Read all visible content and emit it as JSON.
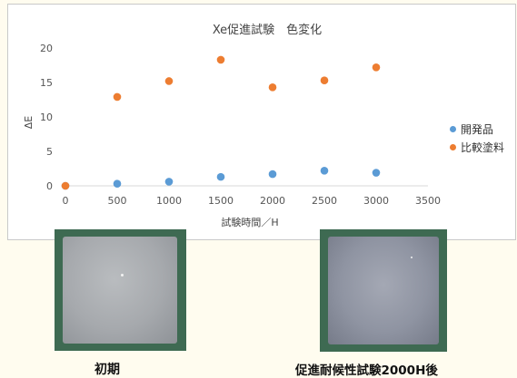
{
  "chart_data": {
    "type": "scatter",
    "title": "Xe促進試験　色変化",
    "xlabel": "試験時間／H",
    "ylabel": "ΔE",
    "xlim": [
      0,
      3500
    ],
    "ylim": [
      0,
      20
    ],
    "xticks": [
      0,
      500,
      1000,
      1500,
      2000,
      2500,
      3000,
      3500
    ],
    "yticks": [
      0,
      5,
      10,
      15,
      20
    ],
    "grid": false,
    "legend_position": "right",
    "series": [
      {
        "name": "開発品",
        "color": "#5b9bd5",
        "x": [
          0,
          500,
          1000,
          1500,
          2000,
          2500,
          3000
        ],
        "y": [
          0,
          0.3,
          0.6,
          1.3,
          1.7,
          2.2,
          1.9
        ]
      },
      {
        "name": "比較塗料",
        "color": "#ed7d31",
        "x": [
          0,
          500,
          1000,
          1500,
          2000,
          2500,
          3000
        ],
        "y": [
          0,
          12.9,
          15.2,
          18.3,
          14.3,
          15.3,
          17.2
        ]
      }
    ]
  },
  "photos": {
    "initial_caption": "初期",
    "after_caption": "促進耐候性試験2000H後"
  }
}
